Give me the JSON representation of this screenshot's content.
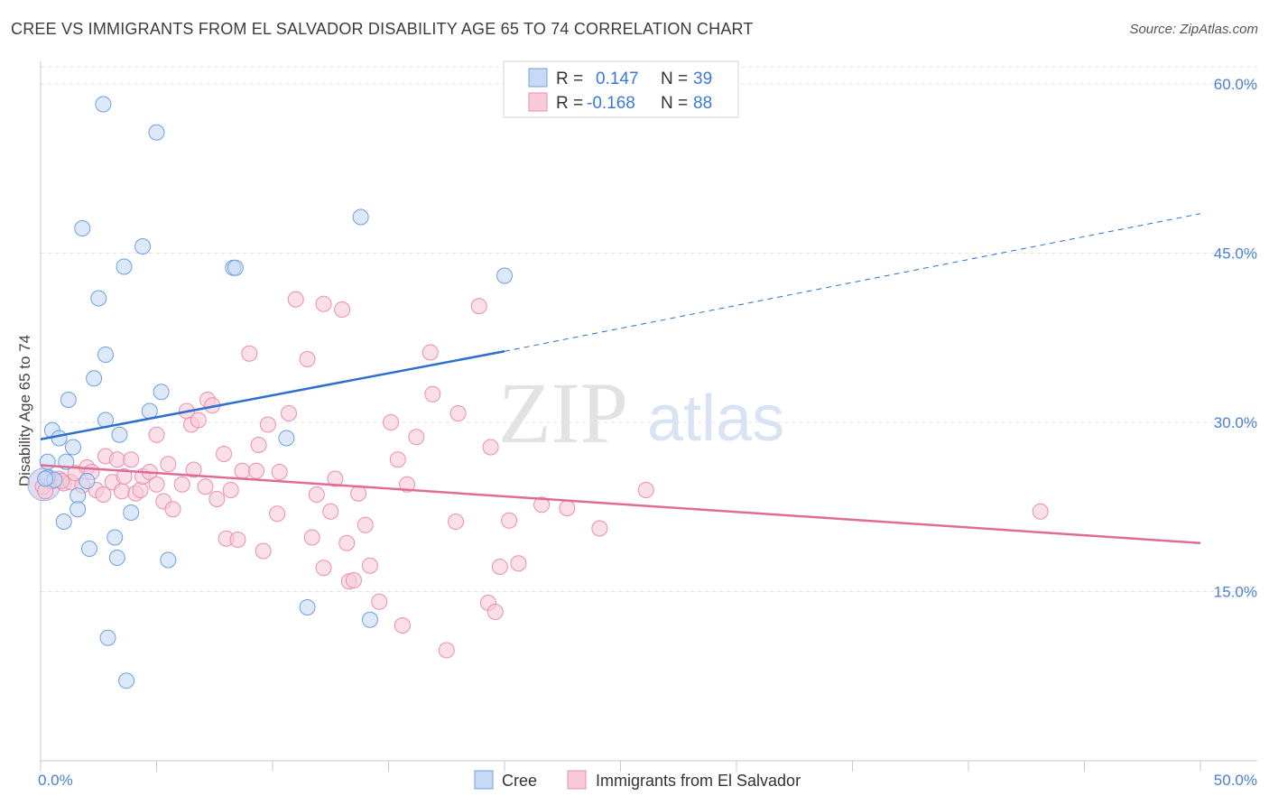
{
  "header": {
    "title": "CREE VS IMMIGRANTS FROM EL SALVADOR DISABILITY AGE 65 TO 74 CORRELATION CHART",
    "source": "Source: ZipAtlas.com"
  },
  "watermark": {
    "zip": "ZIP",
    "atlas": "atlas"
  },
  "chart_data": {
    "type": "scatter",
    "ylabel": "Disability Age 65 to 74",
    "xlim": [
      0,
      50
    ],
    "ylim": [
      0,
      62
    ],
    "x_tick_labels": [
      {
        "value": 0,
        "label": "0.0%"
      },
      {
        "value": 50,
        "label": "50.0%"
      }
    ],
    "y_tick_labels": [
      {
        "value": 15,
        "label": "15.0%"
      },
      {
        "value": 30,
        "label": "30.0%"
      },
      {
        "value": 45,
        "label": "45.0%"
      },
      {
        "value": 60,
        "label": "60.0%"
      }
    ],
    "legend": {
      "placement": "top-center",
      "entries": [
        {
          "r_label": "R =",
          "r_value": "0.147",
          "n_label": "N =",
          "n_value": "39"
        },
        {
          "r_label": "R =",
          "r_value": "-0.168",
          "n_label": "N =",
          "n_value": "88"
        }
      ]
    },
    "series": [
      {
        "name": "Cree",
        "color": "#6fa0e0",
        "fill": "#c6daf5",
        "line_color": "#2e6fcc",
        "trend": {
          "x0": 0,
          "y0": 28.5,
          "x1": 20,
          "y1": 36.3,
          "dashed_to_x": 50,
          "dashed_to_y": 48.5
        },
        "points": [
          [
            2.7,
            58.2
          ],
          [
            5.0,
            55.7
          ],
          [
            1.8,
            47.2
          ],
          [
            13.8,
            48.2
          ],
          [
            4.4,
            45.6
          ],
          [
            3.6,
            43.8
          ],
          [
            8.3,
            43.7
          ],
          [
            8.4,
            43.7
          ],
          [
            20.0,
            43.0
          ],
          [
            2.5,
            41.0
          ],
          [
            2.8,
            36.0
          ],
          [
            2.3,
            33.9
          ],
          [
            1.2,
            32.0
          ],
          [
            5.2,
            32.7
          ],
          [
            4.7,
            31.0
          ],
          [
            2.8,
            30.2
          ],
          [
            0.5,
            29.3
          ],
          [
            3.4,
            28.9
          ],
          [
            10.6,
            28.6
          ],
          [
            0.8,
            28.6
          ],
          [
            1.4,
            27.8
          ],
          [
            0.3,
            26.5
          ],
          [
            1.1,
            26.5
          ],
          [
            0.3,
            25.1
          ],
          [
            0.6,
            24.9
          ],
          [
            2.0,
            24.8
          ],
          [
            1.6,
            23.5
          ],
          [
            1.6,
            22.3
          ],
          [
            3.9,
            22.0
          ],
          [
            1.0,
            21.2
          ],
          [
            3.2,
            19.8
          ],
          [
            2.1,
            18.8
          ],
          [
            3.3,
            18.0
          ],
          [
            5.5,
            17.8
          ],
          [
            11.5,
            13.6
          ],
          [
            14.2,
            12.5
          ],
          [
            2.9,
            10.9
          ],
          [
            3.7,
            7.1
          ],
          [
            0.2,
            25.0
          ]
        ]
      },
      {
        "name": "Immigrants from El Salvador",
        "color": "#e98fb0",
        "fill": "#f8c9d9",
        "line_color": "#e06b96",
        "trend": {
          "x0": 0,
          "y0": 26.2,
          "x1": 50,
          "y1": 19.3
        },
        "points": [
          [
            0.1,
            24.3
          ],
          [
            0.5,
            24.8
          ],
          [
            0.8,
            25.0
          ],
          [
            1.0,
            24.6
          ],
          [
            1.3,
            24.7
          ],
          [
            1.5,
            25.5
          ],
          [
            1.8,
            24.4
          ],
          [
            2.0,
            26.0
          ],
          [
            2.2,
            25.6
          ],
          [
            2.4,
            24.0
          ],
          [
            2.7,
            23.6
          ],
          [
            2.8,
            27.0
          ],
          [
            3.1,
            24.7
          ],
          [
            3.3,
            26.7
          ],
          [
            3.5,
            23.9
          ],
          [
            3.6,
            25.2
          ],
          [
            3.9,
            26.7
          ],
          [
            4.1,
            23.7
          ],
          [
            4.3,
            24.0
          ],
          [
            4.4,
            25.2
          ],
          [
            4.7,
            25.6
          ],
          [
            5.0,
            24.5
          ],
          [
            5.0,
            28.9
          ],
          [
            5.3,
            23.0
          ],
          [
            5.5,
            26.3
          ],
          [
            5.7,
            22.3
          ],
          [
            6.1,
            24.5
          ],
          [
            6.3,
            31.0
          ],
          [
            6.5,
            29.8
          ],
          [
            6.6,
            25.8
          ],
          [
            6.8,
            30.2
          ],
          [
            7.1,
            24.3
          ],
          [
            7.2,
            32.0
          ],
          [
            7.4,
            31.5
          ],
          [
            7.6,
            23.2
          ],
          [
            7.9,
            27.2
          ],
          [
            8.0,
            19.7
          ],
          [
            8.2,
            24.0
          ],
          [
            8.5,
            19.6
          ],
          [
            8.7,
            25.7
          ],
          [
            9.0,
            36.1
          ],
          [
            9.3,
            25.7
          ],
          [
            9.4,
            28.0
          ],
          [
            9.6,
            18.6
          ],
          [
            9.8,
            29.8
          ],
          [
            10.2,
            21.9
          ],
          [
            10.3,
            25.6
          ],
          [
            10.7,
            30.8
          ],
          [
            11.0,
            40.9
          ],
          [
            11.5,
            35.6
          ],
          [
            11.7,
            19.8
          ],
          [
            11.9,
            23.6
          ],
          [
            12.2,
            40.5
          ],
          [
            12.2,
            17.1
          ],
          [
            12.5,
            22.1
          ],
          [
            12.7,
            25.0
          ],
          [
            13.0,
            40.0
          ],
          [
            13.2,
            19.3
          ],
          [
            13.3,
            15.9
          ],
          [
            13.5,
            16.0
          ],
          [
            13.7,
            23.7
          ],
          [
            14.0,
            20.9
          ],
          [
            14.2,
            17.3
          ],
          [
            14.6,
            14.1
          ],
          [
            15.1,
            30.0
          ],
          [
            15.4,
            26.7
          ],
          [
            15.6,
            12.0
          ],
          [
            15.8,
            24.5
          ],
          [
            16.2,
            28.7
          ],
          [
            16.8,
            36.2
          ],
          [
            16.9,
            32.5
          ],
          [
            17.5,
            9.8
          ],
          [
            17.9,
            21.2
          ],
          [
            18.0,
            30.8
          ],
          [
            18.9,
            40.3
          ],
          [
            19.3,
            14.0
          ],
          [
            19.4,
            27.8
          ],
          [
            19.6,
            13.2
          ],
          [
            19.8,
            17.2
          ],
          [
            20.2,
            21.3
          ],
          [
            20.6,
            17.5
          ],
          [
            21.6,
            22.7
          ],
          [
            22.7,
            22.4
          ],
          [
            24.1,
            20.6
          ],
          [
            26.1,
            24.0
          ],
          [
            43.1,
            22.1
          ],
          [
            0.2,
            23.9
          ],
          [
            0.9,
            24.8
          ]
        ]
      }
    ]
  },
  "bottom_legend": [
    {
      "label": "Cree"
    },
    {
      "label": "Immigrants from El Salvador"
    }
  ]
}
